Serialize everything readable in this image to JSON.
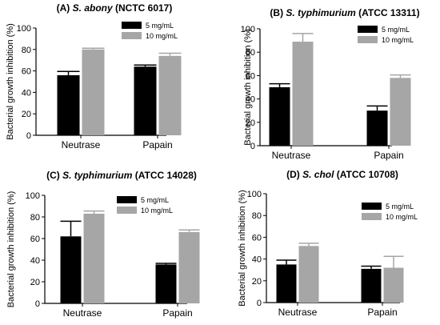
{
  "chart_data": [
    {
      "type": "bar",
      "title_prefix": "(A) ",
      "title_organism": "S. abony",
      "title_strain": " (NCTC 6017)",
      "title": "(A) S. abony (NCTC 6017)",
      "ylabel": "Bacterial growth inhibition (%)",
      "xlabel": "",
      "ylim": [
        0,
        100
      ],
      "yticks": [
        "0",
        "20",
        "40",
        "60",
        "80",
        "100"
      ],
      "categories": [
        "Neutrase",
        "Papain"
      ],
      "series": [
        {
          "name": "5 mg/mL",
          "values": [
            56,
            64
          ],
          "errors": [
            3.5,
            1.5
          ],
          "color": "#000000"
        },
        {
          "name": "10 mg/mL",
          "values": [
            80,
            74
          ],
          "errors": [
            1.2,
            2.5
          ],
          "color": "#a6a6a6"
        }
      ],
      "legend": "top-right",
      "grid": false
    },
    {
      "type": "bar",
      "title_prefix": "(B) ",
      "title_organism": "S. typhimurium",
      "title_strain": " (ATCC 13311)",
      "title": "(B) S. typhimurium (ATCC 13311)",
      "ylabel": "Bacterial growth inhibition (%)",
      "xlabel": "",
      "ylim": [
        0,
        100
      ],
      "yticks": [
        "0",
        "20",
        "40",
        "60",
        "80",
        "100"
      ],
      "categories": [
        "Neutrase",
        "Papain"
      ],
      "series": [
        {
          "name": "5 mg/mL",
          "values": [
            50,
            30
          ],
          "errors": [
            3,
            4
          ],
          "color": "#000000"
        },
        {
          "name": "10 mg/mL",
          "values": [
            89,
            58
          ],
          "errors": [
            7,
            2.5
          ],
          "color": "#a6a6a6"
        }
      ],
      "legend": "top-right",
      "grid": false
    },
    {
      "type": "bar",
      "title_prefix": "(C) ",
      "title_organism": "S. typhimurium",
      "title_strain": " (ATCC 14028)",
      "title": "(C) S. typhimurium (ATCC 14028)",
      "ylabel": "Bacterial growth inhibition (%)",
      "xlabel": "",
      "ylim": [
        0,
        100
      ],
      "yticks": [
        "0",
        "20",
        "40",
        "60",
        "80",
        "100"
      ],
      "categories": [
        "Neutrase",
        "Papain"
      ],
      "series": [
        {
          "name": "5 mg/mL",
          "values": [
            62,
            36
          ],
          "errors": [
            14,
            1
          ],
          "color": "#000000"
        },
        {
          "name": "10 mg/mL",
          "values": [
            83,
            66
          ],
          "errors": [
            2.5,
            2
          ],
          "color": "#a6a6a6"
        }
      ],
      "legend": "top-right",
      "grid": false
    },
    {
      "type": "bar",
      "title_prefix": "(D) ",
      "title_organism": "S. chol",
      "title_strain": " (ATCC 10708)",
      "title": "(D) S. chol (ATCC 10708)",
      "ylabel": "Bacterial growth inhibition (%)",
      "xlabel": "",
      "ylim": [
        0,
        100
      ],
      "yticks": [
        "0",
        "20",
        "40",
        "60",
        "80",
        "100"
      ],
      "categories": [
        "Neutrase",
        "Papain"
      ],
      "series": [
        {
          "name": "5 mg/mL",
          "values": [
            35,
            31
          ],
          "errors": [
            4,
            2.5
          ],
          "color": "#000000"
        },
        {
          "name": "10 mg/mL",
          "values": [
            52,
            32
          ],
          "errors": [
            2.5,
            10.5
          ],
          "color": "#a6a6a6"
        }
      ],
      "legend": "top-right",
      "grid": false
    }
  ]
}
